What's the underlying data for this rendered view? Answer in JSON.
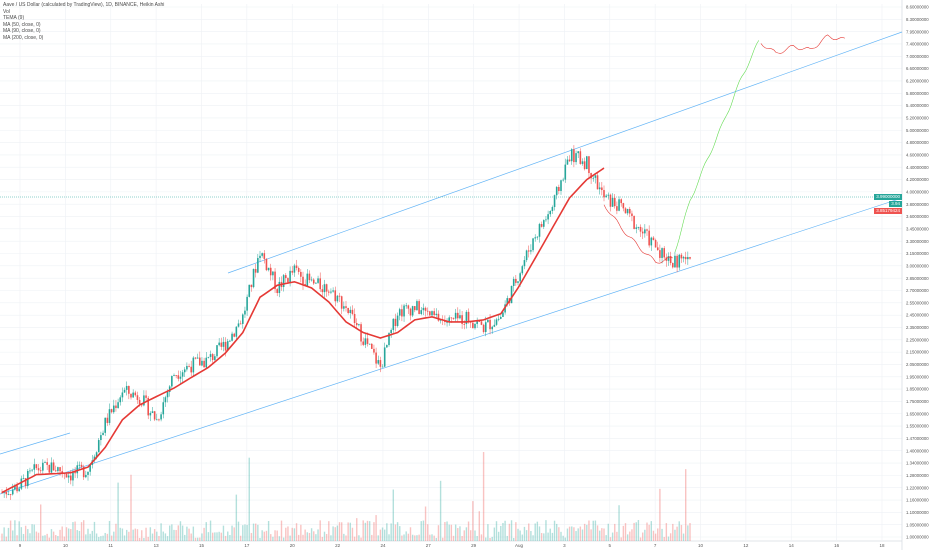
{
  "legend": {
    "title": "Aave / US Dollar (calculated by TradingView), 1D, BINANCE, Heikin Ashi",
    "line2": "Vol",
    "line3": "TEMA (9)",
    "line4": "MA (50, close, 0)",
    "line5": "MA (90, close, 0)",
    "line6": "MA (200, close, 0)"
  },
  "badges": {
    "price_main": "3.99000000",
    "price_second": "3.94",
    "price_third": "3.85179424"
  },
  "colors": {
    "up": "#26a69a",
    "down": "#ef5350",
    "ma": "#e53935",
    "channel": "#64b5f6",
    "projection_down": "#e53935",
    "projection_up": "#66dd55",
    "price_line": "#26a69a",
    "grid": "#eef1f5"
  },
  "chart_data": {
    "type": "line",
    "title": "Aave / US Dollar (calculated by TradingView), 1D, BINANCE, Heikin Ashi",
    "xlabel": "",
    "ylabel": "",
    "x_tick_labels": [
      "9",
      "10",
      "11",
      "13",
      "15",
      "17",
      "20",
      "22",
      "24",
      "27",
      "29",
      "Aug",
      "3",
      "5",
      "7",
      "10",
      "12",
      "14",
      "16",
      "18"
    ],
    "y_tick_labels": [
      "8.60000000",
      "8.30000000",
      "7.95000000",
      "7.40000000",
      "7.00000000",
      "6.60000000",
      "6.20000000",
      "5.80000000",
      "5.40000000",
      "5.20000000",
      "5.00000000",
      "4.80000000",
      "4.60000000",
      "4.40000000",
      "4.20000000",
      "4.00000000",
      "3.80000000",
      "3.60000000",
      "3.45000000",
      "3.30000000",
      "3.15000000",
      "3.00000000",
      "2.85000000",
      "2.70000000",
      "2.55000000",
      "2.45000000",
      "2.35000000",
      "2.25000000",
      "2.15000000",
      "2.05000000",
      "1.95000000",
      "1.85000000",
      "1.75000000",
      "1.65000000",
      "1.55000000",
      "1.47000000",
      "1.40000000",
      "1.34000000",
      "1.28000000",
      "1.22000000",
      "1.16000000",
      "1.10000000",
      "1.05000000",
      "1.00000000"
    ],
    "ylim": [
      1.0,
      8.6
    ],
    "scale": "log",
    "grid": true,
    "series": [
      {
        "name": "Heikin Ashi close",
        "x": [
          0,
          2,
          4,
          6,
          8,
          10,
          12,
          14,
          16,
          18,
          20,
          22,
          24,
          26,
          28,
          30,
          32,
          34,
          36,
          38,
          40,
          42,
          44,
          46,
          48,
          50,
          52,
          54,
          56,
          58,
          60,
          62,
          64,
          66,
          68,
          70,
          72,
          74,
          76,
          78,
          80
        ],
        "values": [
          1.21,
          1.24,
          1.33,
          1.34,
          1.3,
          1.33,
          1.6,
          1.82,
          1.78,
          1.62,
          1.95,
          2.02,
          2.06,
          2.2,
          2.45,
          3.2,
          2.75,
          2.95,
          2.8,
          2.75,
          2.55,
          2.25,
          2.0,
          2.5,
          2.55,
          2.45,
          2.4,
          2.45,
          2.35,
          2.45,
          2.9,
          3.4,
          3.8,
          4.7,
          4.55,
          3.95,
          3.8,
          3.5,
          3.25,
          3.05,
          3.1
        ]
      },
      {
        "name": "MA (50, close, 0)",
        "x": [
          0,
          4,
          8,
          10,
          12,
          14,
          16,
          18,
          20,
          22,
          24,
          26,
          28,
          30,
          32,
          34,
          36,
          38,
          40,
          42,
          44,
          46,
          48,
          50,
          52,
          54,
          56,
          58,
          60,
          62,
          64,
          66,
          68,
          70
        ],
        "values": [
          1.21,
          1.3,
          1.31,
          1.34,
          1.45,
          1.62,
          1.72,
          1.78,
          1.84,
          1.92,
          2.0,
          2.12,
          2.3,
          2.65,
          2.78,
          2.82,
          2.75,
          2.6,
          2.4,
          2.3,
          2.25,
          2.3,
          2.42,
          2.45,
          2.4,
          2.4,
          2.42,
          2.48,
          2.75,
          3.1,
          3.5,
          3.95,
          4.25,
          4.45
        ]
      },
      {
        "name": "Projection",
        "x": [
          70,
          72,
          74,
          76,
          78,
          80,
          82,
          84,
          86,
          88,
          90,
          92,
          94,
          96,
          98
        ],
        "values": [
          3.85,
          3.5,
          3.25,
          3.05,
          3.1,
          3.9,
          4.6,
          5.4,
          6.4,
          7.4,
          7.05,
          7.25,
          7.15,
          7.55,
          7.45
        ]
      }
    ]
  }
}
